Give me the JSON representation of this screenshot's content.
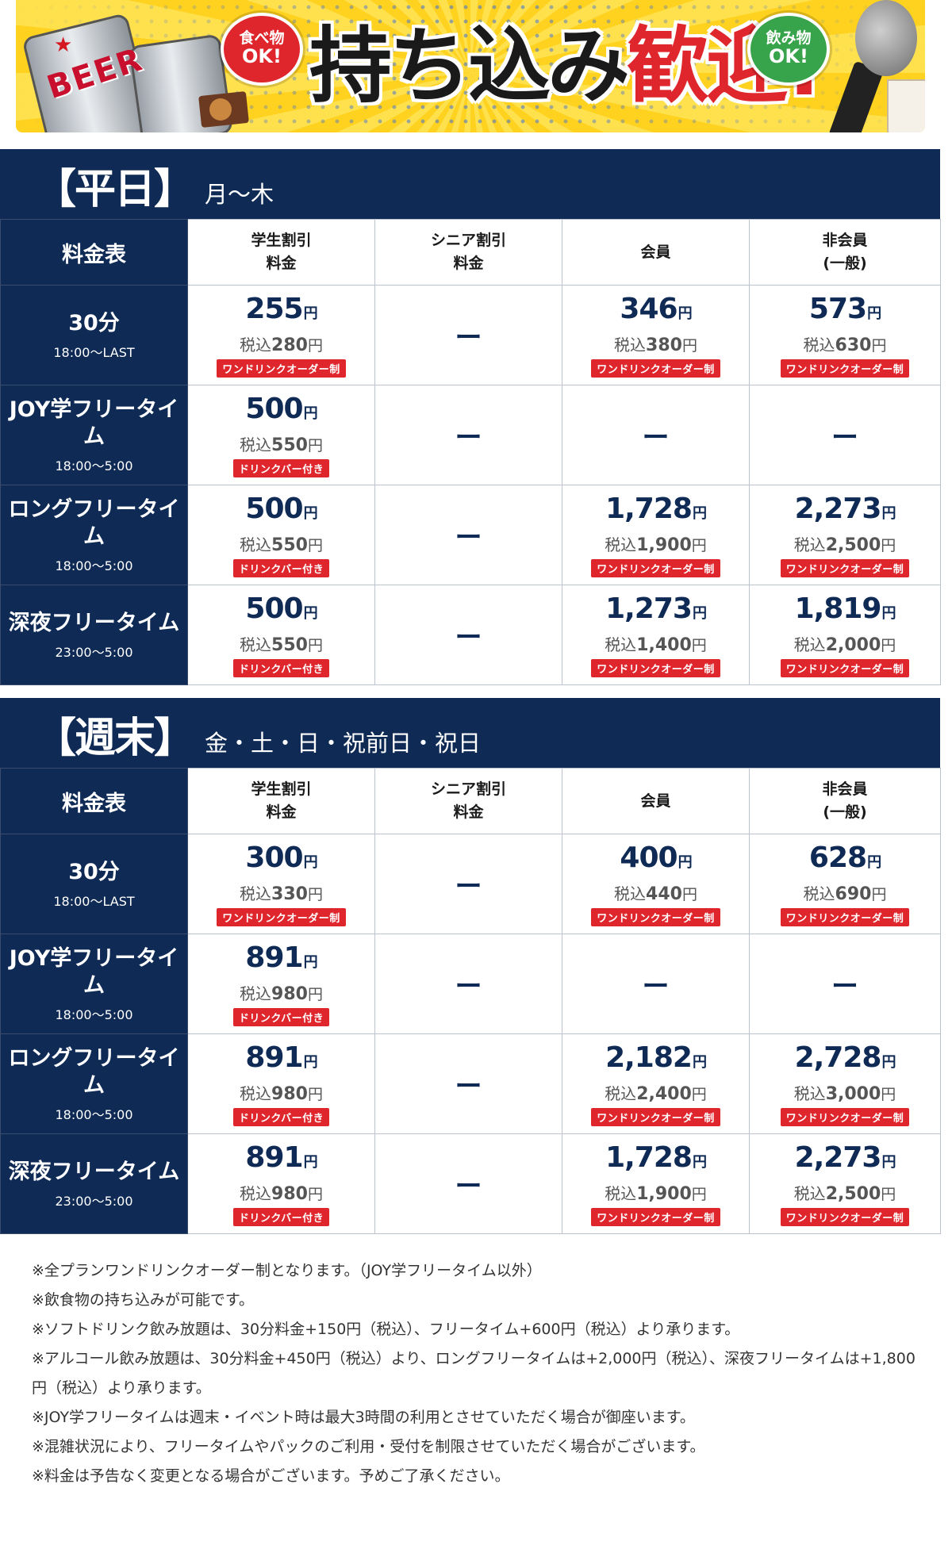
{
  "banner": {
    "title_main": "持ち込み",
    "title_accent": "歓迎!",
    "left_bubble": {
      "line1": "食べ物",
      "line2": "OK!",
      "color": "#e0262d"
    },
    "right_bubble": {
      "line1": "飲み物",
      "line2": "OK!",
      "color": "#37a34a"
    },
    "can_text": "BEER",
    "icons": [
      "beer-can-icon",
      "snack-icon",
      "microphone-icon",
      "drink-cup-icon"
    ]
  },
  "colors": {
    "navy": "#0e2a55",
    "tag_red": "#e0262d"
  },
  "columns": {
    "corner": "料金表",
    "student": [
      "学生割引",
      "料金"
    ],
    "senior": [
      "シニア割引",
      "料金"
    ],
    "member": [
      "会員"
    ],
    "nonmember": [
      "非会員",
      "(一般)"
    ]
  },
  "sections": [
    {
      "title": "【平日】",
      "days": "月〜木",
      "rows": [
        {
          "plan": "30分",
          "time": "18:00〜LAST",
          "student": {
            "price": "255",
            "tax": "280",
            "tag": "ワンドリンクオーダー制"
          },
          "senior": null,
          "member": {
            "price": "346",
            "tax": "380",
            "tag": "ワンドリンクオーダー制"
          },
          "nonmember": {
            "price": "573",
            "tax": "630",
            "tag": "ワンドリンクオーダー制"
          }
        },
        {
          "plan": "JOY学フリータイム",
          "time": "18:00〜5:00",
          "student": {
            "price": "500",
            "tax": "550",
            "tag": "ドリンクバー付き"
          },
          "senior": null,
          "member": null,
          "nonmember": null
        },
        {
          "plan": "ロングフリータイム",
          "time": "18:00〜5:00",
          "student": {
            "price": "500",
            "tax": "550",
            "tag": "ドリンクバー付き"
          },
          "senior": null,
          "member": {
            "price": "1,728",
            "tax": "1,900",
            "tag": "ワンドリンクオーダー制"
          },
          "nonmember": {
            "price": "2,273",
            "tax": "2,500",
            "tag": "ワンドリンクオーダー制"
          }
        },
        {
          "plan": "深夜フリータイム",
          "time": "23:00〜5:00",
          "student": {
            "price": "500",
            "tax": "550",
            "tag": "ドリンクバー付き"
          },
          "senior": null,
          "member": {
            "price": "1,273",
            "tax": "1,400",
            "tag": "ワンドリンクオーダー制"
          },
          "nonmember": {
            "price": "1,819",
            "tax": "2,000",
            "tag": "ワンドリンクオーダー制"
          }
        }
      ]
    },
    {
      "title": "【週末】",
      "days": "金・土・日・祝前日・祝日",
      "rows": [
        {
          "plan": "30分",
          "time": "18:00〜LAST",
          "student": {
            "price": "300",
            "tax": "330",
            "tag": "ワンドリンクオーダー制"
          },
          "senior": null,
          "member": {
            "price": "400",
            "tax": "440",
            "tag": "ワンドリンクオーダー制"
          },
          "nonmember": {
            "price": "628",
            "tax": "690",
            "tag": "ワンドリンクオーダー制"
          }
        },
        {
          "plan": "JOY学フリータイム",
          "time": "18:00〜5:00",
          "student": {
            "price": "891",
            "tax": "980",
            "tag": "ドリンクバー付き"
          },
          "senior": null,
          "member": null,
          "nonmember": null
        },
        {
          "plan": "ロングフリータイム",
          "time": "18:00〜5:00",
          "student": {
            "price": "891",
            "tax": "980",
            "tag": "ドリンクバー付き"
          },
          "senior": null,
          "member": {
            "price": "2,182",
            "tax": "2,400",
            "tag": "ワンドリンクオーダー制"
          },
          "nonmember": {
            "price": "2,728",
            "tax": "3,000",
            "tag": "ワンドリンクオーダー制"
          }
        },
        {
          "plan": "深夜フリータイム",
          "time": "23:00〜5:00",
          "student": {
            "price": "891",
            "tax": "980",
            "tag": "ドリンクバー付き"
          },
          "senior": null,
          "member": {
            "price": "1,728",
            "tax": "1,900",
            "tag": "ワンドリンクオーダー制"
          },
          "nonmember": {
            "price": "2,273",
            "tax": "2,500",
            "tag": "ワンドリンクオーダー制"
          }
        }
      ]
    }
  ],
  "labels": {
    "yen": "円",
    "tax_prefix": "税込",
    "dash": "ー"
  },
  "notes": [
    "※全プランワンドリンクオーダー制となります。（JOY学フリータイム以外）",
    "※飲食物の持ち込みが可能です。",
    "※ソフトドリンク飲み放題は、30分料金+150円（税込）、フリータイム+600円（税込）より承ります。",
    "※アルコール飲み放題は、30分料金+450円（税込）より、ロングフリータイムは+2,000円（税込）、深夜フリータイムは+1,800円（税込）より承ります。",
    "※JOY学フリータイムは週末・イベント時は最大3時間の利用とさせていただく場合が御座います。",
    "※混雑状況により、フリータイムやパックのご利用・受付を制限させていただく場合がございます。",
    "※料金は予告なく変更となる場合がございます。予めご了承ください。"
  ]
}
